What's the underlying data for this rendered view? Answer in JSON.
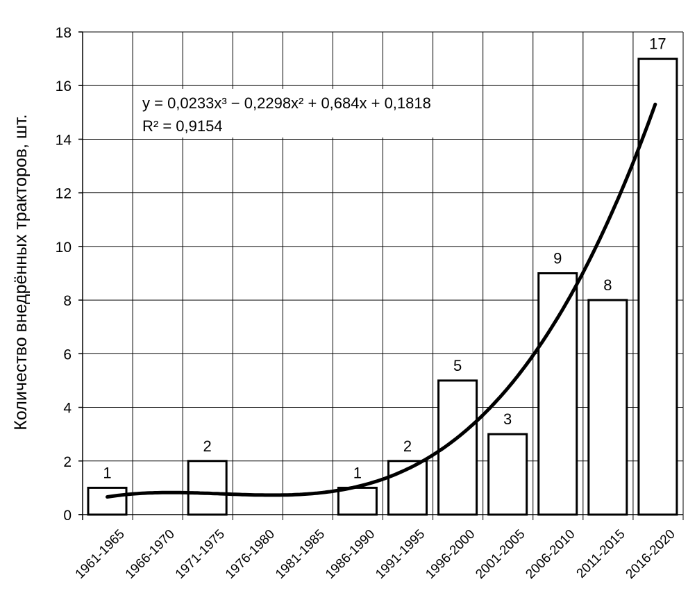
{
  "chart_data": {
    "type": "bar",
    "title": "",
    "xlabel": "",
    "ylabel": "Количество внедрённых тракторов, шт.",
    "categories": [
      "1961-1965",
      "1966-1970",
      "1971-1975",
      "1976-1980",
      "1981-1985",
      "1986-1990",
      "1991-1995",
      "1996-2000",
      "2001-2005",
      "2006-2010",
      "2011-2015",
      "2016-2020"
    ],
    "values": [
      1,
      0,
      2,
      0,
      0,
      1,
      2,
      5,
      3,
      9,
      8,
      17
    ],
    "data_labels": [
      "1",
      "",
      "2",
      "",
      "",
      "1",
      "2",
      "5",
      "3",
      "9",
      "8",
      "17"
    ],
    "ylim": [
      0,
      18
    ],
    "yticks": [
      0,
      2,
      4,
      6,
      8,
      10,
      12,
      14,
      16,
      18
    ],
    "grid": true,
    "bar_fill": "#ffffff",
    "bar_stroke": "#000000",
    "trendline": {
      "type": "polynomial",
      "order": 3,
      "coefficients": [
        0.0233,
        -0.2298,
        0.684,
        0.1818
      ],
      "equation": "y = 0,0233x³ − 0,2298x² + 0,684x + 0,1818",
      "r2_label": "R² = 0,9154",
      "color": "#000000"
    }
  }
}
